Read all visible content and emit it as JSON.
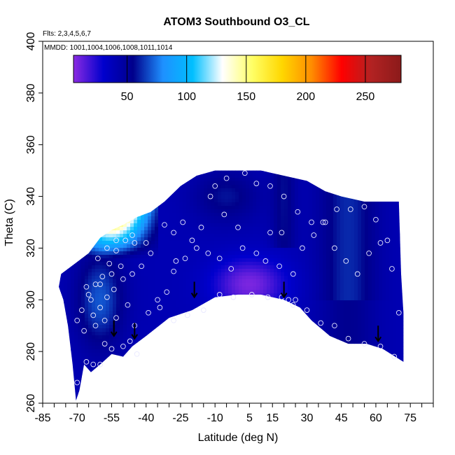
{
  "chart_data": {
    "type": "heatmap",
    "title": "ATOM3 Southbound O3_CL",
    "flights_note": "Flts: 2,3,4,5,6,7",
    "dates_note": "MMDD: 1001,1004,1006,1008,1011,1014",
    "xlabel": "Latitude (deg N)",
    "ylabel": "Theta (C)",
    "xlim": [
      -85,
      85
    ],
    "ylim": [
      260,
      400
    ],
    "x_tick_labels": [
      "-85",
      "-70",
      "-55",
      "-40",
      "-25",
      "-10",
      "5",
      "15",
      "30",
      "45",
      "60",
      "75"
    ],
    "x_tick_values": [
      -85,
      -70,
      -55,
      -40,
      -25,
      -10,
      5,
      15,
      30,
      45,
      60,
      75
    ],
    "y_tick_labels": [
      "260",
      "280",
      "300",
      "320",
      "340",
      "360",
      "380",
      "400"
    ],
    "y_tick_values": [
      260,
      280,
      300,
      320,
      340,
      360,
      380,
      400
    ],
    "colorbar": {
      "range": [
        5,
        280
      ],
      "tick_labels": [
        "50",
        "100",
        "150",
        "200",
        "250"
      ],
      "tick_values": [
        50,
        100,
        150,
        200,
        250
      ],
      "colors": [
        "#8b2be2",
        "#0000cd",
        "#00008b",
        "#1e90ff",
        "#00bfff",
        "#ffffff",
        "#ffff66",
        "#ffd700",
        "#ff8c00",
        "#ff0000",
        "#b22222",
        "#8b1a1a"
      ]
    },
    "surface": {
      "lower_boundary": [
        [
          -70.5,
          261
        ],
        [
          -69,
          265
        ],
        [
          -68,
          270
        ],
        [
          -67,
          275
        ],
        [
          -64,
          272
        ],
        [
          -60,
          275
        ],
        [
          -55,
          279
        ],
        [
          -50,
          278
        ],
        [
          -46,
          282
        ],
        [
          -40,
          286
        ],
        [
          -30,
          293
        ],
        [
          -20,
          296
        ],
        [
          -10,
          301
        ],
        [
          0,
          302
        ],
        [
          10,
          302
        ],
        [
          20,
          300
        ],
        [
          27,
          297
        ],
        [
          32,
          292
        ],
        [
          40,
          286
        ],
        [
          48,
          283
        ],
        [
          56,
          283
        ],
        [
          63,
          281
        ],
        [
          72,
          276
        ]
      ],
      "upper_boundary": [
        [
          72,
          276
        ],
        [
          72,
          295
        ],
        [
          71,
          310
        ],
        [
          70,
          338
        ],
        [
          65,
          338
        ],
        [
          55,
          338
        ],
        [
          45,
          340
        ],
        [
          38,
          342
        ],
        [
          30,
          346
        ],
        [
          20,
          348
        ],
        [
          10,
          350
        ],
        [
          0,
          350
        ],
        [
          -10,
          350
        ],
        [
          -18,
          348
        ],
        [
          -25,
          344
        ],
        [
          -32,
          338
        ],
        [
          -38,
          334
        ],
        [
          -44,
          332
        ],
        [
          -50,
          329
        ],
        [
          -55,
          327
        ],
        [
          -60,
          324
        ],
        [
          -65,
          318
        ],
        [
          -71,
          314
        ],
        [
          -77,
          310
        ],
        [
          -78,
          305
        ],
        [
          -76,
          300
        ],
        [
          -74,
          290
        ],
        [
          -72,
          275
        ],
        [
          -70.5,
          261
        ]
      ]
    },
    "points": [
      [
        -70,
        268
      ],
      [
        -66,
        276
      ],
      [
        -63,
        275
      ],
      [
        -60,
        275
      ],
      [
        -58,
        283
      ],
      [
        -55,
        281
      ],
      [
        -50,
        282
      ],
      [
        -47,
        284
      ],
      [
        -44,
        279
      ],
      [
        -67,
        288
      ],
      [
        -63,
        294
      ],
      [
        -60,
        297
      ],
      [
        -57,
        301
      ],
      [
        -54,
        304
      ],
      [
        -50,
        308
      ],
      [
        -46,
        310
      ],
      [
        -42,
        313
      ],
      [
        -65,
        302
      ],
      [
        -62,
        306
      ],
      [
        -59,
        309
      ],
      [
        -56,
        314
      ],
      [
        -53,
        319
      ],
      [
        -49,
        323
      ],
      [
        -46,
        325
      ],
      [
        -68,
        296
      ],
      [
        -64,
        300
      ],
      [
        -60,
        306
      ],
      [
        -55,
        310
      ],
      [
        -51,
        313
      ],
      [
        -61,
        316
      ],
      [
        -57,
        320
      ],
      [
        -53,
        323
      ],
      [
        -66,
        305
      ],
      [
        -70,
        292
      ],
      [
        -62,
        290
      ],
      [
        -58,
        292
      ],
      [
        -53,
        293
      ],
      [
        -48,
        298
      ],
      [
        -45,
        290
      ],
      [
        -39,
        295
      ],
      [
        -34,
        297
      ],
      [
        -31,
        303
      ],
      [
        -28,
        311
      ],
      [
        -23,
        316
      ],
      [
        -18,
        320
      ],
      [
        -13,
        318
      ],
      [
        -8,
        316
      ],
      [
        -3,
        312
      ],
      [
        2,
        320
      ],
      [
        8,
        318
      ],
      [
        12,
        315
      ],
      [
        18,
        313
      ],
      [
        24,
        310
      ],
      [
        28,
        320
      ],
      [
        33,
        325
      ],
      [
        38,
        330
      ],
      [
        42,
        320
      ],
      [
        47,
        315
      ],
      [
        52,
        310
      ],
      [
        57,
        318
      ],
      [
        62,
        322
      ],
      [
        67,
        312
      ],
      [
        22,
        300
      ],
      [
        19,
        301
      ],
      [
        13,
        301
      ],
      [
        6,
        302
      ],
      [
        -2,
        301
      ],
      [
        -8,
        302
      ],
      [
        -15,
        296
      ],
      [
        -22,
        294
      ],
      [
        -28,
        292
      ],
      [
        -35,
        300
      ],
      [
        -10,
        344
      ],
      [
        -5,
        347
      ],
      [
        3,
        349
      ],
      [
        8,
        345
      ],
      [
        14,
        344
      ],
      [
        20,
        340
      ],
      [
        26,
        334
      ],
      [
        32,
        330
      ],
      [
        37,
        330
      ],
      [
        43,
        335
      ],
      [
        49,
        335
      ],
      [
        55,
        336
      ],
      [
        60,
        331
      ],
      [
        65,
        323
      ],
      [
        70,
        295
      ],
      [
        68,
        278
      ],
      [
        62,
        282
      ],
      [
        55,
        283
      ],
      [
        48,
        285
      ],
      [
        42,
        290
      ],
      [
        36,
        291
      ],
      [
        30,
        296
      ],
      [
        24,
        298
      ],
      [
        -32,
        329
      ],
      [
        -28,
        326
      ],
      [
        -24,
        330
      ],
      [
        -20,
        323
      ],
      [
        -16,
        328
      ],
      [
        -12,
        340
      ],
      [
        -6,
        333
      ],
      [
        0,
        328
      ],
      [
        -40,
        322
      ],
      [
        -45,
        322
      ],
      [
        -38,
        318
      ],
      [
        -27,
        315
      ],
      [
        14,
        326
      ],
      [
        19,
        326
      ],
      [
        25,
        300
      ]
    ],
    "arrows": [
      [
        -54,
        286
      ],
      [
        -45,
        285
      ],
      [
        -19,
        301
      ],
      [
        20,
        301
      ],
      [
        61,
        284
      ]
    ]
  }
}
